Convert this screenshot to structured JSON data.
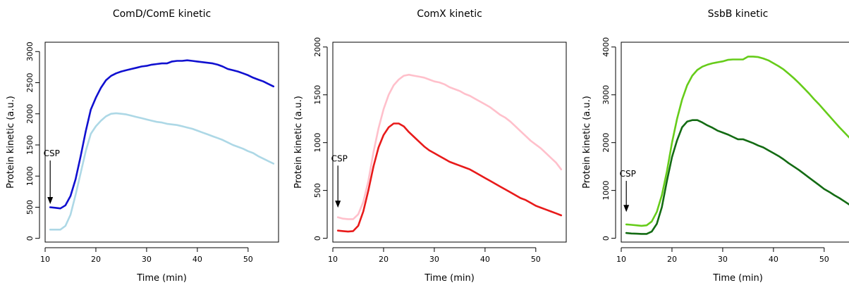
{
  "chart_data": [
    {
      "type": "line",
      "title": "ComD/ComE kinetic",
      "xlabel": "Time (min)",
      "ylabel": "Protein kinetic (a.u.)",
      "xlim": [
        10,
        56
      ],
      "ylim": [
        -60,
        3150
      ],
      "xticks": [
        10,
        20,
        30,
        40,
        50
      ],
      "yticks": [
        0,
        500,
        1000,
        1500,
        2000,
        2500,
        3000
      ],
      "grid": false,
      "annotation": {
        "text": "CSP",
        "x": 11,
        "y_top": 1250,
        "y_tip": 550
      },
      "series": [
        {
          "color": "#1010d0",
          "x": [
            11,
            12,
            13,
            14,
            15,
            16,
            17,
            18,
            19,
            20,
            21,
            22,
            23,
            24,
            25,
            26,
            27,
            28,
            29,
            30,
            31,
            32,
            33,
            34,
            35,
            36,
            37,
            38,
            39,
            40,
            41,
            42,
            43,
            44,
            45,
            46,
            47,
            48,
            49,
            50,
            51,
            52,
            53,
            54,
            55
          ],
          "y": [
            500,
            490,
            480,
            530,
            680,
            950,
            1320,
            1720,
            2070,
            2260,
            2420,
            2540,
            2610,
            2650,
            2680,
            2700,
            2720,
            2740,
            2760,
            2770,
            2790,
            2800,
            2810,
            2810,
            2840,
            2850,
            2850,
            2860,
            2850,
            2840,
            2830,
            2820,
            2810,
            2790,
            2760,
            2720,
            2700,
            2680,
            2650,
            2620,
            2580,
            2550,
            2520,
            2480,
            2440
          ]
        },
        {
          "color": "#add8e6",
          "x": [
            11,
            12,
            13,
            14,
            15,
            16,
            17,
            18,
            19,
            20,
            21,
            22,
            23,
            24,
            25,
            26,
            27,
            28,
            29,
            30,
            31,
            32,
            33,
            34,
            35,
            36,
            37,
            38,
            39,
            40,
            41,
            42,
            43,
            44,
            45,
            46,
            47,
            48,
            49,
            50,
            51,
            52,
            53,
            54,
            55
          ],
          "y": [
            140,
            140,
            140,
            200,
            380,
            700,
            1050,
            1400,
            1680,
            1800,
            1890,
            1960,
            2000,
            2010,
            2000,
            1990,
            1970,
            1950,
            1930,
            1910,
            1890,
            1870,
            1860,
            1840,
            1830,
            1820,
            1800,
            1780,
            1760,
            1730,
            1700,
            1670,
            1640,
            1610,
            1580,
            1540,
            1500,
            1470,
            1440,
            1400,
            1370,
            1320,
            1280,
            1240,
            1200
          ]
        }
      ]
    },
    {
      "type": "line",
      "title": "ComX kinetic",
      "xlabel": "Time (min)",
      "ylabel": "Protein kinetic (a.u.)",
      "xlim": [
        10,
        56
      ],
      "ylim": [
        -40,
        2050
      ],
      "xticks": [
        10,
        20,
        30,
        40,
        50
      ],
      "yticks": [
        0,
        500,
        1000,
        1500,
        2000
      ],
      "grid": false,
      "annotation": {
        "text": "CSP",
        "x": 11,
        "y_top": 760,
        "y_tip": 320
      },
      "series": [
        {
          "color": "#ffc0cb",
          "x": [
            11,
            12,
            13,
            14,
            15,
            16,
            17,
            18,
            19,
            20,
            21,
            22,
            23,
            24,
            25,
            26,
            27,
            28,
            29,
            30,
            31,
            32,
            33,
            34,
            35,
            36,
            37,
            38,
            39,
            40,
            41,
            42,
            43,
            44,
            45,
            46,
            47,
            48,
            49,
            50,
            51,
            52,
            53,
            54,
            55
          ],
          "y": [
            220,
            205,
            200,
            200,
            250,
            380,
            600,
            900,
            1150,
            1350,
            1500,
            1600,
            1660,
            1700,
            1710,
            1700,
            1690,
            1680,
            1660,
            1640,
            1630,
            1610,
            1580,
            1560,
            1540,
            1510,
            1490,
            1460,
            1430,
            1400,
            1370,
            1330,
            1290,
            1260,
            1220,
            1170,
            1120,
            1070,
            1020,
            980,
            940,
            890,
            840,
            790,
            720
          ]
        },
        {
          "color": "#e81a1a",
          "x": [
            11,
            12,
            13,
            14,
            15,
            16,
            17,
            18,
            19,
            20,
            21,
            22,
            23,
            24,
            25,
            26,
            27,
            28,
            29,
            30,
            31,
            32,
            33,
            34,
            35,
            36,
            37,
            38,
            39,
            40,
            41,
            42,
            43,
            44,
            45,
            46,
            47,
            48,
            49,
            50,
            51,
            52,
            53,
            54,
            55
          ],
          "y": [
            80,
            75,
            70,
            75,
            130,
            280,
            500,
            750,
            950,
            1080,
            1160,
            1200,
            1200,
            1170,
            1110,
            1060,
            1010,
            960,
            920,
            890,
            860,
            830,
            800,
            780,
            760,
            740,
            720,
            690,
            660,
            630,
            600,
            570,
            540,
            510,
            480,
            450,
            420,
            400,
            370,
            340,
            320,
            300,
            280,
            260,
            240
          ]
        }
      ]
    },
    {
      "type": "line",
      "title": "SsbB kinetic",
      "xlabel": "Time (min)",
      "ylabel": "Protein kinetic (a.u.)",
      "xlim": [
        10,
        56
      ],
      "ylim": [
        -80,
        4100
      ],
      "xticks": [
        10,
        20,
        30,
        40,
        50
      ],
      "yticks": [
        0,
        1000,
        2000,
        3000,
        4000
      ],
      "grid": false,
      "annotation": {
        "text": "CSP",
        "x": 11,
        "y_top": 1200,
        "y_tip": 550
      },
      "series": [
        {
          "color": "#66cc1a",
          "x": [
            11,
            12,
            13,
            14,
            15,
            16,
            17,
            18,
            19,
            20,
            21,
            22,
            23,
            24,
            25,
            26,
            27,
            28,
            29,
            30,
            31,
            32,
            33,
            34,
            35,
            36,
            37,
            38,
            39,
            40,
            41,
            42,
            43,
            44,
            45,
            46,
            47,
            48,
            49,
            50,
            51,
            52,
            53,
            54,
            55
          ],
          "y": [
            290,
            280,
            270,
            260,
            270,
            350,
            550,
            900,
            1400,
            2000,
            2500,
            2900,
            3200,
            3400,
            3520,
            3590,
            3630,
            3660,
            3680,
            3700,
            3730,
            3740,
            3740,
            3740,
            3800,
            3800,
            3790,
            3760,
            3720,
            3660,
            3600,
            3530,
            3440,
            3350,
            3250,
            3140,
            3030,
            2910,
            2800,
            2680,
            2560,
            2440,
            2320,
            2210,
            2100
          ]
        },
        {
          "color": "#136b13",
          "x": [
            11,
            12,
            13,
            14,
            15,
            16,
            17,
            18,
            19,
            20,
            21,
            22,
            23,
            24,
            25,
            26,
            27,
            28,
            29,
            30,
            31,
            32,
            33,
            34,
            35,
            36,
            37,
            38,
            39,
            40,
            41,
            42,
            43,
            44,
            45,
            46,
            47,
            48,
            49,
            50,
            51,
            52,
            53,
            54,
            55
          ],
          "y": [
            110,
            100,
            95,
            90,
            90,
            140,
            300,
            650,
            1200,
            1700,
            2050,
            2320,
            2440,
            2470,
            2470,
            2420,
            2360,
            2310,
            2250,
            2210,
            2170,
            2120,
            2070,
            2070,
            2030,
            1990,
            1940,
            1900,
            1840,
            1780,
            1720,
            1650,
            1570,
            1500,
            1430,
            1350,
            1270,
            1190,
            1110,
            1030,
            970,
            900,
            840,
            770,
            700
          ]
        }
      ]
    }
  ]
}
